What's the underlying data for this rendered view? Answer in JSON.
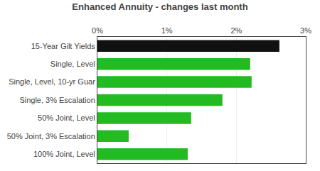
{
  "chart_data": {
    "type": "bar",
    "orientation": "horizontal",
    "title": "Enhanced Annuity - changes last month",
    "categories": [
      "15-Year Gilt Yields",
      "Single, Level",
      "Single, Level, 10-yr Guar",
      "Single, 3% Escalation",
      "50% Joint, Level",
      "50% Joint, 3% Escalation",
      "100% Joint, Level"
    ],
    "values": [
      2.62,
      2.2,
      2.22,
      1.8,
      1.35,
      0.45,
      1.3
    ],
    "colors": [
      "#111111",
      "#22bb22",
      "#22bb22",
      "#22bb22",
      "#22bb22",
      "#22bb22",
      "#22bb22"
    ],
    "xlim": [
      0,
      3
    ],
    "xticks": [
      {
        "value": 0,
        "label": "0%"
      },
      {
        "value": 1,
        "label": "1%"
      },
      {
        "value": 2,
        "label": "2%"
      },
      {
        "value": 3,
        "label": "3%"
      }
    ],
    "grid": true
  }
}
